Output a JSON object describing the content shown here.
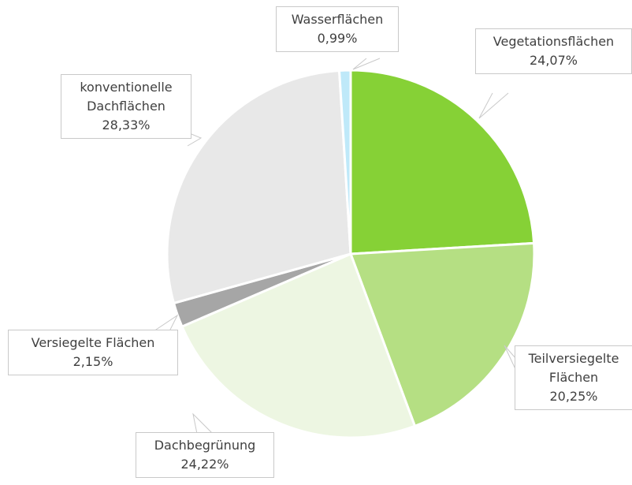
{
  "chart_data": {
    "type": "pie",
    "categories": [
      "Vegetationsflächen",
      "Teilversiegelte Flächen",
      "Dachbegrünung",
      "Versiegelte Flächen",
      "konventionelle Dachflächen",
      "Wasserflächen"
    ],
    "values": [
      24.07,
      20.25,
      24.22,
      2.15,
      28.33,
      0.99
    ],
    "value_labels": [
      "24,07%",
      "20,25%",
      "24,22%",
      "2,15%",
      "28,33%",
      "0,99%"
    ],
    "colors": [
      "#86d136",
      "#b5df83",
      "#edf6e2",
      "#a6a6a6",
      "#e8e8e8",
      "#bfe9f9"
    ]
  }
}
